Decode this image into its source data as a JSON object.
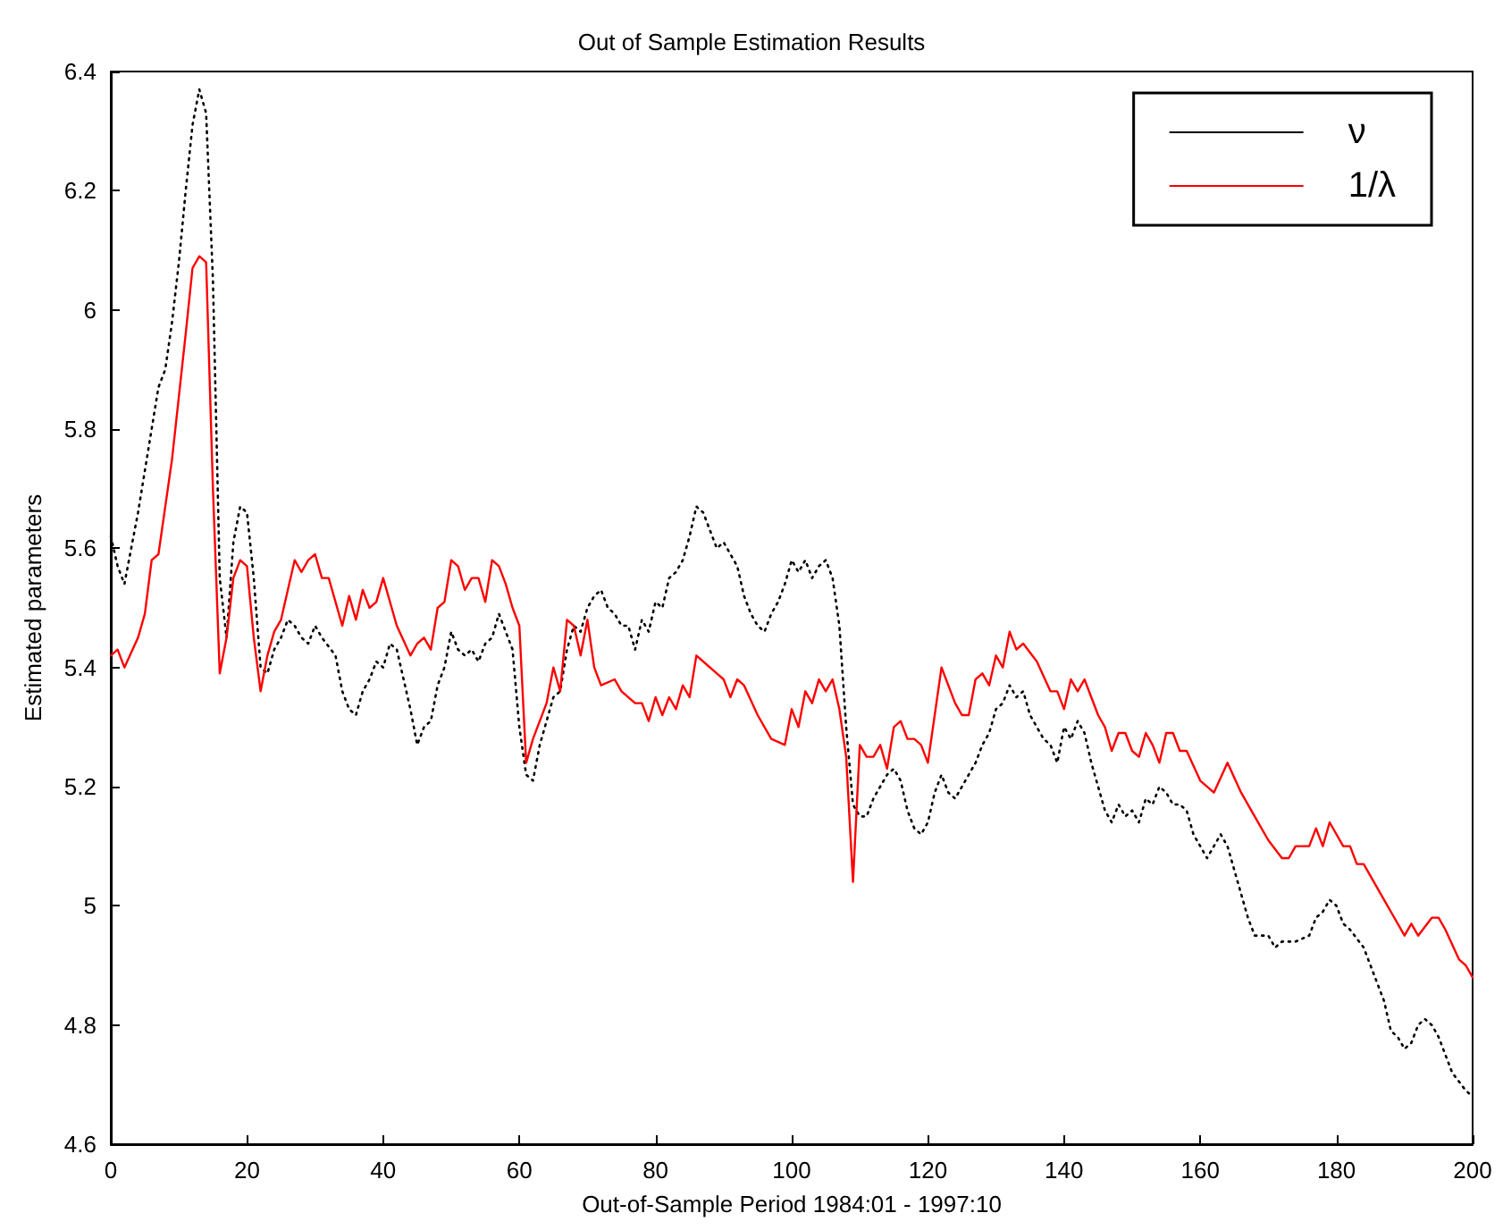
{
  "chart_data": {
    "type": "line",
    "title": "Out of Sample Estimation Results",
    "xlabel": "Out-of-Sample Period 1984:01 - 1997:10",
    "ylabel": "Estimated parameters",
    "xlim": [
      0,
      200
    ],
    "xticks": [
      0,
      20,
      40,
      60,
      80,
      100,
      120,
      140,
      160,
      180,
      200
    ],
    "ylim": [
      4.6,
      6.4
    ],
    "yticks": [
      4.6,
      4.8,
      5,
      5.2,
      5.4,
      5.6,
      5.8,
      6,
      6.2,
      6.4
    ],
    "grid": false,
    "legend": "top right",
    "marker": "none",
    "series": [
      {
        "name": "ν",
        "color": "#000000",
        "line_style": "dotted",
        "x": [
          0,
          1,
          2,
          3,
          4,
          5,
          6,
          7,
          8,
          9,
          10,
          11,
          12,
          13,
          14,
          15,
          16,
          17,
          18,
          19,
          20,
          21,
          22,
          23,
          24,
          25,
          26,
          27,
          28,
          29,
          30,
          31,
          33,
          34,
          35,
          36,
          37,
          38,
          39,
          40,
          41,
          42,
          43,
          44,
          45,
          46,
          47,
          48,
          49,
          50,
          51,
          52,
          53,
          54,
          55,
          56,
          57,
          58,
          59,
          60,
          61,
          62,
          63,
          64,
          65,
          66,
          67,
          68,
          69,
          70,
          71,
          72,
          73,
          74,
          75,
          76,
          77,
          78,
          79,
          80,
          81,
          82,
          83,
          84,
          85,
          86,
          87,
          88,
          89,
          90,
          91,
          92,
          93,
          94,
          95,
          96,
          97,
          98,
          99,
          100,
          101,
          102,
          103,
          104,
          105,
          106,
          107,
          108,
          109,
          110,
          111,
          112,
          113,
          114,
          115,
          116,
          117,
          118,
          119,
          120,
          121,
          122,
          123,
          124,
          125,
          126,
          127,
          128,
          129,
          130,
          131,
          132,
          133,
          134,
          135,
          136,
          137,
          138,
          139,
          140,
          141,
          142,
          143,
          144,
          145,
          146,
          147,
          148,
          149,
          150,
          151,
          152,
          153,
          154,
          155,
          156,
          157,
          158,
          159,
          160,
          161,
          162,
          163,
          164,
          165,
          166,
          167,
          168,
          170,
          171,
          172,
          174,
          176,
          177,
          178,
          179,
          180,
          181,
          182,
          184,
          186,
          187,
          188,
          189,
          190,
          191,
          192,
          193,
          194,
          195,
          196,
          197,
          199,
          200
        ],
        "values": [
          5.62,
          5.57,
          5.54,
          5.6,
          5.66,
          5.73,
          5.8,
          5.87,
          5.9,
          5.98,
          6.08,
          6.2,
          6.31,
          6.37,
          6.33,
          6.05,
          5.55,
          5.45,
          5.61,
          5.67,
          5.66,
          5.55,
          5.4,
          5.39,
          5.43,
          5.45,
          5.48,
          5.47,
          5.45,
          5.44,
          5.47,
          5.45,
          5.42,
          5.36,
          5.33,
          5.32,
          5.36,
          5.38,
          5.41,
          5.4,
          5.44,
          5.43,
          5.38,
          5.33,
          5.27,
          5.3,
          5.31,
          5.37,
          5.4,
          5.46,
          5.43,
          5.42,
          5.43,
          5.41,
          5.44,
          5.45,
          5.49,
          5.46,
          5.43,
          5.3,
          5.22,
          5.21,
          5.27,
          5.31,
          5.35,
          5.36,
          5.43,
          5.47,
          5.46,
          5.5,
          5.52,
          5.53,
          5.5,
          5.49,
          5.47,
          5.47,
          5.43,
          5.48,
          5.46,
          5.51,
          5.5,
          5.55,
          5.56,
          5.58,
          5.62,
          5.67,
          5.66,
          5.63,
          5.6,
          5.61,
          5.59,
          5.57,
          5.52,
          5.49,
          5.47,
          5.46,
          5.49,
          5.51,
          5.54,
          5.58,
          5.56,
          5.58,
          5.55,
          5.57,
          5.58,
          5.55,
          5.47,
          5.3,
          5.17,
          5.15,
          5.15,
          5.18,
          5.2,
          5.22,
          5.23,
          5.21,
          5.16,
          5.13,
          5.12,
          5.14,
          5.19,
          5.22,
          5.19,
          5.18,
          5.2,
          5.22,
          5.24,
          5.27,
          5.29,
          5.33,
          5.34,
          5.37,
          5.35,
          5.36,
          5.32,
          5.3,
          5.28,
          5.27,
          5.24,
          5.3,
          5.28,
          5.31,
          5.29,
          5.24,
          5.2,
          5.16,
          5.14,
          5.17,
          5.15,
          5.16,
          5.14,
          5.18,
          5.17,
          5.2,
          5.19,
          5.17,
          5.17,
          5.16,
          5.12,
          5.1,
          5.08,
          5.1,
          5.12,
          5.1,
          5.06,
          5.02,
          4.98,
          4.95,
          4.95,
          4.93,
          4.94,
          4.94,
          4.95,
          4.98,
          4.99,
          5.01,
          5,
          4.97,
          4.96,
          4.93,
          4.87,
          4.84,
          4.79,
          4.78,
          4.76,
          4.77,
          4.8,
          4.81,
          4.8,
          4.78,
          4.75,
          4.72,
          4.69,
          4.68
        ]
      },
      {
        "name": "1/λ",
        "color": "#ff0000",
        "line_style": "solid",
        "x": [
          0,
          1,
          2,
          4,
          5,
          6,
          7,
          9,
          11,
          12,
          13,
          14,
          15,
          16,
          17,
          18,
          19,
          20,
          21,
          22,
          23,
          24,
          25,
          27,
          28,
          29,
          30,
          31,
          32,
          34,
          35,
          36,
          37,
          38,
          39,
          40,
          42,
          44,
          45,
          46,
          47,
          48,
          49,
          50,
          51,
          52,
          53,
          54,
          55,
          56,
          57,
          58,
          59,
          60,
          61,
          62,
          63,
          64,
          65,
          66,
          67,
          68,
          69,
          70,
          71,
          72,
          74,
          75,
          77,
          78,
          79,
          80,
          81,
          82,
          83,
          84,
          85,
          86,
          87,
          89,
          90,
          91,
          92,
          93,
          95,
          97,
          99,
          100,
          101,
          102,
          103,
          104,
          105,
          106,
          107,
          108,
          109,
          110,
          111,
          112,
          113,
          114,
          115,
          116,
          117,
          118,
          119,
          120,
          122,
          124,
          125,
          126,
          127,
          128,
          129,
          130,
          131,
          132,
          133,
          134,
          136,
          138,
          139,
          140,
          141,
          142,
          143,
          144,
          145,
          146,
          147,
          148,
          149,
          150,
          151,
          152,
          153,
          154,
          155,
          156,
          157,
          158,
          160,
          162,
          164,
          166,
          168,
          170,
          172,
          173,
          174,
          176,
          177,
          178,
          179,
          181,
          182,
          183,
          184,
          186,
          188,
          190,
          191,
          192,
          194,
          195,
          196,
          198,
          199,
          200
        ],
        "values": [
          5.42,
          5.43,
          5.4,
          5.45,
          5.49,
          5.58,
          5.59,
          5.75,
          5.96,
          6.07,
          6.09,
          6.08,
          5.7,
          5.39,
          5.45,
          5.55,
          5.58,
          5.57,
          5.45,
          5.36,
          5.42,
          5.46,
          5.48,
          5.58,
          5.56,
          5.58,
          5.59,
          5.55,
          5.55,
          5.47,
          5.52,
          5.48,
          5.53,
          5.5,
          5.51,
          5.55,
          5.47,
          5.42,
          5.44,
          5.45,
          5.43,
          5.5,
          5.51,
          5.58,
          5.57,
          5.53,
          5.55,
          5.55,
          5.51,
          5.58,
          5.57,
          5.54,
          5.5,
          5.47,
          5.24,
          5.28,
          5.31,
          5.34,
          5.4,
          5.36,
          5.48,
          5.47,
          5.42,
          5.48,
          5.4,
          5.37,
          5.38,
          5.36,
          5.34,
          5.34,
          5.31,
          5.35,
          5.32,
          5.35,
          5.33,
          5.37,
          5.35,
          5.42,
          5.41,
          5.39,
          5.38,
          5.35,
          5.38,
          5.37,
          5.32,
          5.28,
          5.27,
          5.33,
          5.3,
          5.36,
          5.34,
          5.38,
          5.36,
          5.38,
          5.33,
          5.25,
          5.04,
          5.27,
          5.25,
          5.25,
          5.27,
          5.23,
          5.3,
          5.31,
          5.28,
          5.28,
          5.27,
          5.24,
          5.4,
          5.34,
          5.32,
          5.32,
          5.38,
          5.39,
          5.37,
          5.42,
          5.4,
          5.46,
          5.43,
          5.44,
          5.41,
          5.36,
          5.36,
          5.33,
          5.38,
          5.36,
          5.38,
          5.35,
          5.32,
          5.3,
          5.26,
          5.29,
          5.29,
          5.26,
          5.25,
          5.29,
          5.27,
          5.24,
          5.29,
          5.29,
          5.26,
          5.26,
          5.21,
          5.19,
          5.24,
          5.19,
          5.15,
          5.11,
          5.08,
          5.08,
          5.1,
          5.1,
          5.13,
          5.1,
          5.14,
          5.1,
          5.1,
          5.07,
          5.07,
          5.03,
          4.99,
          4.95,
          4.97,
          4.95,
          4.98,
          4.98,
          4.96,
          4.91,
          4.9,
          4.88
        ]
      }
    ]
  }
}
